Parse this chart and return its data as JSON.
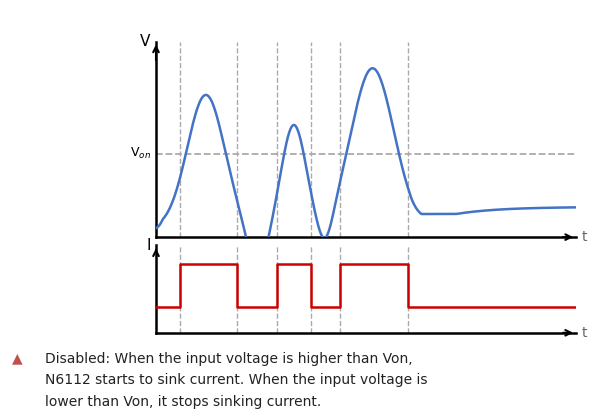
{
  "background_color": "#ffffff",
  "von_level": 0.42,
  "von_label": "V$_{on}$",
  "v_label": "V",
  "i_label": "I",
  "t_label": "t",
  "voltage_color": "#4472C4",
  "current_color": "#CC0000",
  "dashed_color": "#aaaaaa",
  "annotation_triangle_color": "#C0504D",
  "annotation_text_line1": "Disabled: When the input voltage is higher than Von,",
  "annotation_text_line2": "N6112 starts to sink current. When the input voltage is",
  "annotation_text_line3": "lower than Von, it stops sinking current.",
  "annotation_fontsize": 10.0,
  "figsize": [
    6.0,
    4.16
  ],
  "dpi": 100,
  "pulse_high": 0.6,
  "crossings_x": [
    0.18,
    0.62,
    0.92,
    1.18,
    1.4,
    1.92
  ]
}
